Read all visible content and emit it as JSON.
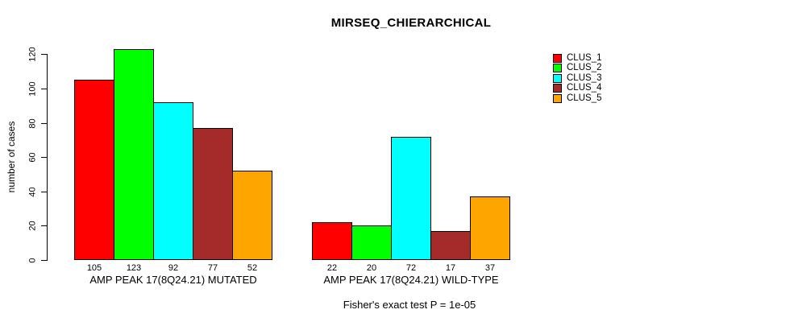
{
  "figure": {
    "background": "#FFFFFF",
    "axis_color": "#000000",
    "text_color": "#000000"
  },
  "chart_data": {
    "type": "bar",
    "title": "MIRSEQ_CHIERARCHICAL",
    "xlabel": "",
    "ylabel": "number of cases",
    "categories": [
      "AMP PEAK 17(8Q24.21) MUTATED",
      "AMP PEAK 17(8Q24.21) WILD-TYPE"
    ],
    "series": [
      {
        "name": "CLUS_1",
        "color": "#FF0000",
        "values": [
          105,
          22
        ]
      },
      {
        "name": "CLUS_2",
        "color": "#00FF00",
        "values": [
          123,
          20
        ]
      },
      {
        "name": "CLUS_3",
        "color": "#00FFFF",
        "values": [
          92,
          72
        ]
      },
      {
        "name": "CLUS_4",
        "color": "#A52A2A",
        "values": [
          77,
          17
        ]
      },
      {
        "name": "CLUS_5",
        "color": "#FFA500",
        "values": [
          52,
          37
        ]
      }
    ],
    "show_bar_values": true,
    "yticks": [
      0,
      20,
      40,
      60,
      80,
      100,
      120
    ],
    "ylim": [
      0,
      125
    ],
    "grid": false,
    "legend_position": "right",
    "annotation": "Fisher's exact test P = 1e-05"
  }
}
